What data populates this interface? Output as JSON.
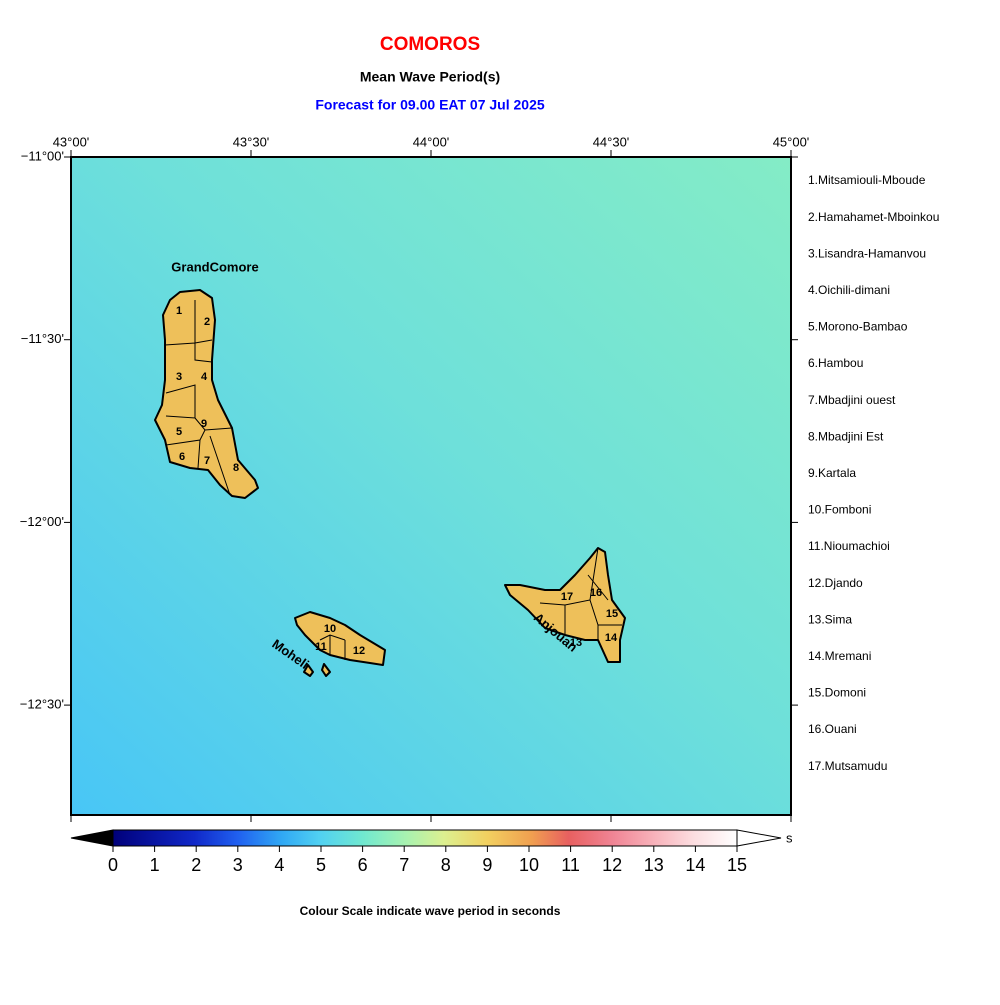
{
  "header": {
    "title": "COMOROS",
    "subtitle": "Mean Wave Period(s)",
    "forecast": "Forecast for  09.00 EAT 07 Jul 2025"
  },
  "map": {
    "lon_ticks": [
      "43°00'",
      "43°30'",
      "44°00'",
      "44°30'",
      "45°00'"
    ],
    "lat_ticks": [
      "−11°00'",
      "−11°30'",
      "−12°00'",
      "−12°30'"
    ],
    "islands": [
      "GrandComore",
      "Moheli",
      "Anjouan"
    ],
    "region_numbers": [
      "1",
      "2",
      "3",
      "4",
      "5",
      "6",
      "7",
      "8",
      "9",
      "10",
      "11",
      "12",
      "13",
      "14",
      "15",
      "16",
      "17"
    ]
  },
  "regions": [
    "1.Mitsamiouli-Mboude",
    "2.Hamahamet-Mboinkou",
    "3.Lisandra-Hamanvou",
    "4.Oichili-dimani",
    "5.Morono-Bambao",
    "6.Hambou",
    "7.Mbadjini ouest",
    "8.Mbadjini Est",
    "9.Kartala",
    "10.Fomboni",
    "11.Nioumachioi",
    "12.Djando",
    "13.Sima",
    "14.Mremani",
    "15.Domoni",
    "16.Ouani",
    "17.Mutsamudu"
  ],
  "colorbar": {
    "ticks": [
      0,
      1,
      2,
      3,
      4,
      5,
      6,
      7,
      8,
      9,
      10,
      11,
      12,
      13,
      14,
      15
    ],
    "unit": "s",
    "caption": "Colour Scale indicate wave period in seconds"
  }
}
